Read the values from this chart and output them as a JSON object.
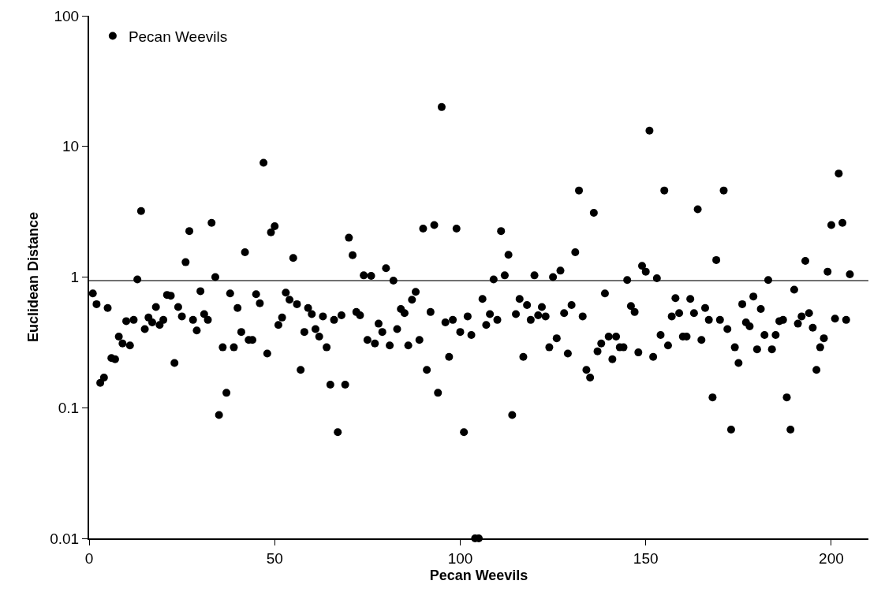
{
  "chart_data": {
    "type": "scatter",
    "xlabel": "Pecan Weevils",
    "ylabel": "Euclidean Distance",
    "x": [
      1,
      2,
      3,
      4,
      5,
      6,
      7,
      8,
      9,
      10,
      11,
      12,
      13,
      14,
      15,
      16,
      17,
      18,
      19,
      20,
      21,
      22,
      23,
      24,
      25,
      26,
      27,
      28,
      29,
      30,
      31,
      32,
      33,
      34,
      35,
      36,
      37,
      38,
      39,
      40,
      41,
      42,
      43,
      44,
      45,
      46,
      47,
      48,
      49,
      50,
      51,
      52,
      53,
      54,
      55,
      56,
      57,
      58,
      59,
      60,
      61,
      62,
      63,
      64,
      65,
      66,
      67,
      68,
      69,
      70,
      71,
      72,
      73,
      74,
      75,
      76,
      77,
      78,
      79,
      80,
      81,
      82,
      83,
      84,
      85,
      86,
      87,
      88,
      89,
      90,
      91,
      92,
      93,
      94,
      95,
      96,
      97,
      98,
      99,
      100,
      101,
      102,
      103,
      104,
      105,
      106,
      107,
      108,
      109,
      110,
      111,
      112,
      113,
      114,
      115,
      116,
      117,
      118,
      119,
      120,
      121,
      122,
      123,
      124,
      125,
      126,
      127,
      128,
      129,
      130,
      131,
      132,
      133,
      134,
      135,
      136,
      137,
      138,
      139,
      140,
      141,
      142,
      143,
      144,
      145,
      146,
      147,
      148,
      149,
      150,
      151,
      152,
      153,
      154,
      155,
      156,
      157,
      158,
      159,
      160,
      161,
      162,
      163,
      164,
      165,
      166,
      167,
      168,
      169,
      170,
      171,
      172,
      173,
      174,
      175,
      176,
      177,
      178,
      179,
      180,
      181,
      182,
      183,
      184,
      185,
      186,
      187,
      188,
      189,
      190,
      191,
      192,
      193,
      194,
      195,
      196,
      197,
      198,
      199,
      200,
      201,
      202,
      203,
      204,
      205
    ],
    "series": [
      {
        "name": "Pecan Weevils",
        "color": "#000000",
        "values": [
          0.75,
          0.62,
          0.155,
          0.17,
          0.58,
          0.24,
          0.235,
          0.35,
          0.31,
          0.46,
          0.3,
          0.47,
          0.96,
          3.2,
          0.4,
          0.49,
          0.45,
          0.59,
          0.43,
          0.47,
          0.73,
          0.72,
          0.22,
          0.59,
          0.5,
          1.3,
          2.25,
          0.47,
          0.39,
          0.78,
          0.52,
          0.47,
          2.6,
          1.0,
          0.088,
          0.29,
          0.13,
          0.75,
          0.29,
          0.58,
          0.38,
          1.55,
          0.33,
          0.33,
          0.74,
          0.63,
          7.5,
          0.26,
          2.2,
          2.45,
          0.43,
          0.49,
          0.76,
          0.67,
          1.4,
          0.62,
          0.195,
          0.38,
          0.58,
          0.52,
          0.4,
          0.35,
          0.5,
          0.29,
          0.15,
          0.47,
          0.065,
          0.51,
          0.15,
          2.0,
          1.47,
          0.54,
          0.51,
          1.03,
          0.33,
          1.02,
          0.31,
          0.44,
          0.38,
          1.17,
          0.3,
          0.94,
          0.4,
          0.57,
          0.53,
          0.3,
          0.67,
          0.77,
          0.33,
          2.35,
          0.195,
          0.54,
          2.5,
          0.13,
          20,
          0.45,
          0.245,
          0.47,
          2.35,
          0.38,
          0.065,
          0.5,
          0.36,
          0.01,
          0.01,
          0.68,
          0.43,
          0.52,
          0.96,
          0.47,
          2.25,
          1.03,
          1.48,
          0.088,
          0.52,
          0.68,
          0.245,
          0.61,
          0.47,
          1.03,
          0.51,
          0.59,
          0.5,
          0.29,
          1.0,
          0.34,
          1.12,
          0.53,
          0.26,
          0.61,
          1.55,
          4.6,
          0.5,
          0.195,
          0.17,
          3.1,
          0.27,
          0.31,
          0.75,
          0.35,
          0.235,
          0.35,
          0.29,
          0.29,
          0.95,
          0.6,
          0.54,
          0.265,
          1.22,
          1.1,
          13.2,
          0.245,
          0.98,
          0.36,
          4.6,
          0.3,
          0.5,
          0.69,
          0.53,
          0.35,
          0.35,
          0.68,
          0.53,
          3.3,
          0.33,
          0.58,
          0.47,
          0.12,
          1.35,
          0.47,
          4.6,
          0.4,
          0.068,
          0.29,
          0.22,
          0.62,
          0.45,
          0.42,
          0.71,
          0.28,
          0.57,
          0.36,
          0.95,
          0.28,
          0.36,
          0.46,
          0.47,
          0.12,
          0.068,
          0.8,
          0.44,
          0.5,
          1.33,
          0.53,
          0.41,
          0.195,
          0.29,
          0.34,
          1.1,
          2.5,
          0.48,
          6.2,
          2.6,
          0.47,
          1.05
        ]
      }
    ],
    "xlim": [
      0,
      210
    ],
    "xticks": [
      0,
      50,
      100,
      150,
      200
    ],
    "ylim": [
      0.01,
      100
    ],
    "yticks": [
      0.01,
      0.1,
      1,
      10,
      100
    ],
    "log": "y",
    "ref_lines": [
      {
        "axis": "y",
        "value": 0.94,
        "color": "#404040"
      }
    ],
    "marker": "circle",
    "grid": false,
    "legend": "top left"
  }
}
